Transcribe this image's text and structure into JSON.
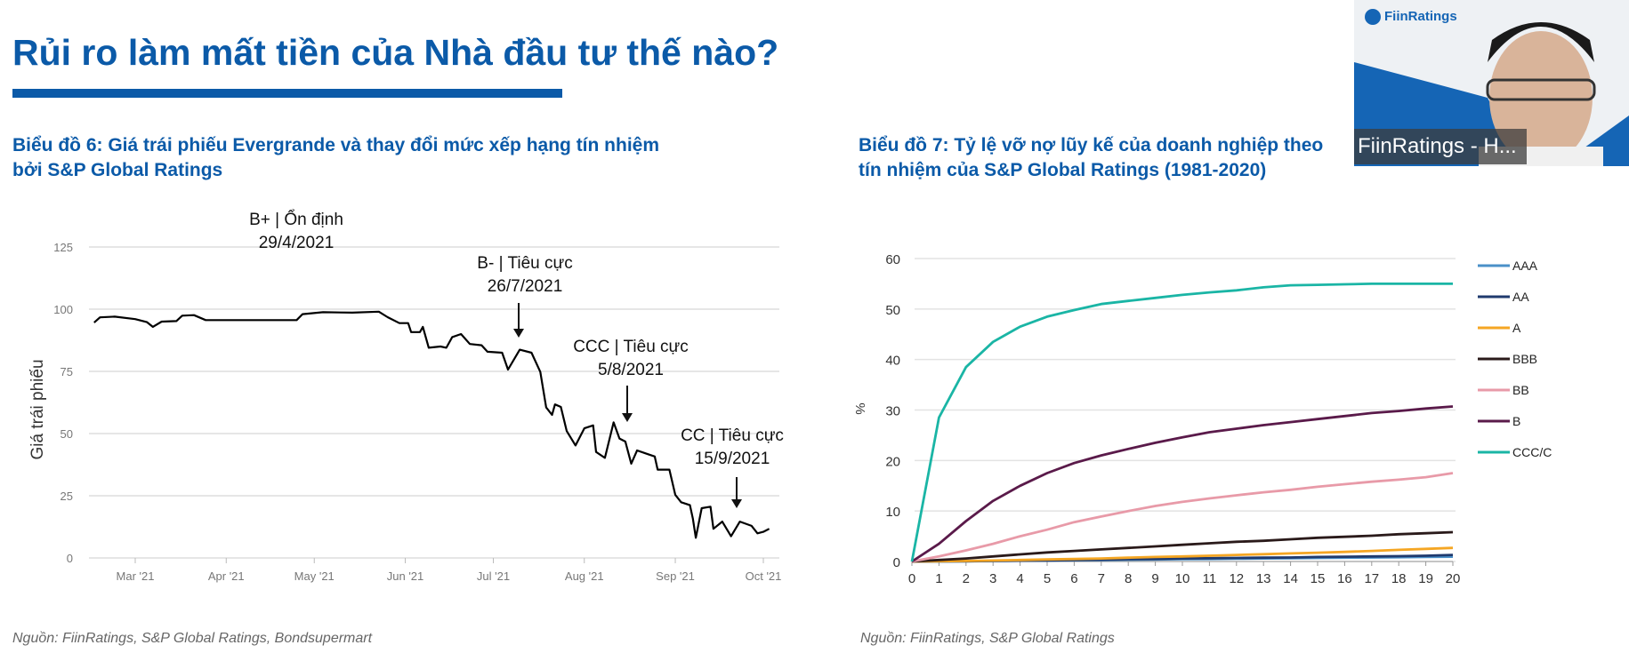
{
  "slide": {
    "title": "Rủi ro làm mất tiền của Nhà đầu tư thế nào?",
    "chart6_title_line1": "Biểu đồ 6: Giá trái phiếu Evergrande và thay đổi mức xếp hạng tín nhiệm",
    "chart6_title_line2": "bởi S&P Global Ratings",
    "chart7_title_line1": "Biểu đồ 7: Tỷ lệ vỡ nợ lũy kế của doanh nghiệp theo",
    "chart7_title_line2": "tín nhiệm của S&P Global Ratings (1981-2020)",
    "source_left": "Nguồn: FiinRatings, S&P Global Ratings, Bondsupermart",
    "source_right": "Nguồn: FiinRatings, S&P Global Ratings",
    "accent_color": "#0b5aa8"
  },
  "webcam": {
    "logo": "FiinRatings",
    "participant_label": "FiinRatings - H..."
  },
  "chart_data": [
    {
      "type": "line",
      "ylabel": "Giá trái phiếu",
      "ylim": [
        0,
        125
      ],
      "yticks": [
        "0",
        "25",
        "50",
        "75",
        "100",
        "125"
      ],
      "xticks": [
        "Mar '21",
        "Apr '21",
        "May '21",
        "Jun '21",
        "Jul '21",
        "Aug '21",
        "Sep '21",
        "Oct '21"
      ],
      "xtick_dates": [
        "2021-03-01",
        "2021-04-01",
        "2021-05-01",
        "2021-06-01",
        "2021-07-01",
        "2021-08-01",
        "2021-09-01",
        "2021-10-01"
      ],
      "grid": true,
      "series": [
        {
          "color": "#000000",
          "points": [
            [
              "2021-02-15",
              94.6
            ],
            [
              "2021-02-17",
              96.7
            ],
            [
              "2021-02-22",
              97
            ],
            [
              "2021-03-01",
              96
            ],
            [
              "2021-03-05",
              94.8
            ],
            [
              "2021-03-07",
              92.9
            ],
            [
              "2021-03-10",
              95
            ],
            [
              "2021-03-15",
              95.2
            ],
            [
              "2021-03-17",
              97.4
            ],
            [
              "2021-03-21",
              97.6
            ],
            [
              "2021-03-25",
              95.6
            ],
            [
              "2021-04-01",
              95.6
            ],
            [
              "2021-04-25",
              95.6
            ],
            [
              "2021-04-27",
              98
            ],
            [
              "2021-05-04",
              98.8
            ],
            [
              "2021-05-14",
              98.6
            ],
            [
              "2021-05-23",
              99
            ],
            [
              "2021-05-26",
              96.8
            ],
            [
              "2021-05-30",
              94.4
            ],
            [
              "2021-06-02",
              94.4
            ],
            [
              "2021-06-03",
              90.8
            ],
            [
              "2021-06-06",
              90.8
            ],
            [
              "2021-06-07",
              92.9
            ],
            [
              "2021-06-09",
              84.5
            ],
            [
              "2021-06-13",
              85
            ],
            [
              "2021-06-15",
              84.5
            ],
            [
              "2021-06-17",
              88.8
            ],
            [
              "2021-06-20",
              90
            ],
            [
              "2021-06-23",
              86
            ],
            [
              "2021-06-27",
              85.5
            ],
            [
              "2021-06-29",
              82.9
            ],
            [
              "2021-07-04",
              82.5
            ],
            [
              "2021-07-06",
              75.7
            ],
            [
              "2021-07-10",
              83.7
            ],
            [
              "2021-07-14",
              82.5
            ],
            [
              "2021-07-17",
              74.8
            ],
            [
              "2021-07-19",
              60.5
            ],
            [
              "2021-07-21",
              57.5
            ],
            [
              "2021-07-22",
              61.7
            ],
            [
              "2021-07-24",
              60.7
            ],
            [
              "2021-07-26",
              51
            ],
            [
              "2021-07-29",
              45.2
            ],
            [
              "2021-08-01",
              52.1
            ],
            [
              "2021-08-04",
              53.3
            ],
            [
              "2021-08-05",
              42.6
            ],
            [
              "2021-08-08",
              40.2
            ],
            [
              "2021-08-11",
              54.5
            ],
            [
              "2021-08-13",
              48
            ],
            [
              "2021-08-15",
              46.8
            ],
            [
              "2021-08-17",
              37.9
            ],
            [
              "2021-08-19",
              43.2
            ],
            [
              "2021-08-22",
              42
            ],
            [
              "2021-08-25",
              40.8
            ],
            [
              "2021-08-26",
              35.5
            ],
            [
              "2021-08-30",
              35.5
            ],
            [
              "2021-09-01",
              25.4
            ],
            [
              "2021-09-03",
              22.4
            ],
            [
              "2021-09-06",
              21.2
            ],
            [
              "2021-09-07",
              15.8
            ],
            [
              "2021-09-08",
              8.1
            ],
            [
              "2021-09-10",
              20
            ],
            [
              "2021-09-13",
              20.6
            ],
            [
              "2021-09-14",
              11.7
            ],
            [
              "2021-09-17",
              14.6
            ],
            [
              "2021-09-20",
              8.7
            ],
            [
              "2021-09-23",
              14.6
            ],
            [
              "2021-09-27",
              12.9
            ],
            [
              "2021-09-29",
              9.9
            ],
            [
              "2021-10-01",
              10.5
            ],
            [
              "2021-10-03",
              11.7
            ]
          ]
        }
      ],
      "annotations": [
        {
          "rating": "B+ | Ổn định",
          "date": "29/4/2021",
          "arrow": false
        },
        {
          "rating": "B- | Tiêu cực",
          "date": "26/7/2021",
          "arrow": true
        },
        {
          "rating": "CCC | Tiêu cực",
          "date": "5/8/2021",
          "arrow": true
        },
        {
          "rating": "CC | Tiêu cực",
          "date": "15/9/2021",
          "arrow": true
        }
      ]
    },
    {
      "type": "line",
      "ylabel": "%",
      "ylim": [
        0,
        60
      ],
      "yticks": [
        "0",
        "10",
        "20",
        "30",
        "40",
        "50",
        "60"
      ],
      "x": [
        0,
        1,
        2,
        3,
        4,
        5,
        6,
        7,
        8,
        9,
        10,
        11,
        12,
        13,
        14,
        15,
        16,
        17,
        18,
        19,
        20
      ],
      "grid": true,
      "legend": "right",
      "series": [
        {
          "name": "AAA",
          "color": "#4a90c8",
          "values": [
            0,
            0,
            0.03,
            0.1,
            0.15,
            0.2,
            0.25,
            0.3,
            0.35,
            0.4,
            0.45,
            0.5,
            0.55,
            0.6,
            0.65,
            0.7,
            0.75,
            0.8,
            0.85,
            0.9,
            0.95
          ]
        },
        {
          "name": "AA",
          "color": "#1f3a6e",
          "values": [
            0,
            0.02,
            0.05,
            0.1,
            0.15,
            0.2,
            0.3,
            0.35,
            0.45,
            0.5,
            0.6,
            0.65,
            0.7,
            0.75,
            0.8,
            0.9,
            0.95,
            1,
            1.05,
            1.15,
            1.3
          ]
        },
        {
          "name": "A",
          "color": "#f5a623",
          "values": [
            0,
            0.05,
            0.1,
            0.2,
            0.3,
            0.4,
            0.5,
            0.6,
            0.75,
            0.9,
            1,
            1.15,
            1.3,
            1.45,
            1.6,
            1.75,
            1.9,
            2.1,
            2.3,
            2.5,
            2.7
          ]
        },
        {
          "name": "BBB",
          "color": "#2a1a1a",
          "values": [
            0,
            0.3,
            0.6,
            1,
            1.4,
            1.8,
            2.1,
            2.4,
            2.7,
            3,
            3.3,
            3.6,
            3.9,
            4.1,
            4.4,
            4.7,
            4.9,
            5.1,
            5.4,
            5.6,
            5.8
          ]
        },
        {
          "name": "BB",
          "color": "#e89aa8",
          "values": [
            0,
            1,
            2.2,
            3.5,
            5,
            6.3,
            7.8,
            8.9,
            10,
            11,
            11.8,
            12.5,
            13.1,
            13.7,
            14.2,
            14.8,
            15.3,
            15.8,
            16.2,
            16.7,
            17.5
          ]
        },
        {
          "name": "B",
          "color": "#5a1a4a",
          "values": [
            0,
            3.5,
            8,
            12,
            15,
            17.5,
            19.5,
            21,
            22.3,
            23.5,
            24.6,
            25.6,
            26.3,
            27,
            27.6,
            28.2,
            28.8,
            29.4,
            29.8,
            30.3,
            30.7
          ]
        },
        {
          "name": "CCC/C",
          "color": "#1ab5a5",
          "values": [
            0,
            28.5,
            38.5,
            43.5,
            46.5,
            48.5,
            49.8,
            51,
            51.6,
            52.2,
            52.8,
            53.3,
            53.7,
            54.3,
            54.7,
            54.8,
            54.9,
            55,
            55,
            55,
            55
          ]
        }
      ]
    }
  ]
}
